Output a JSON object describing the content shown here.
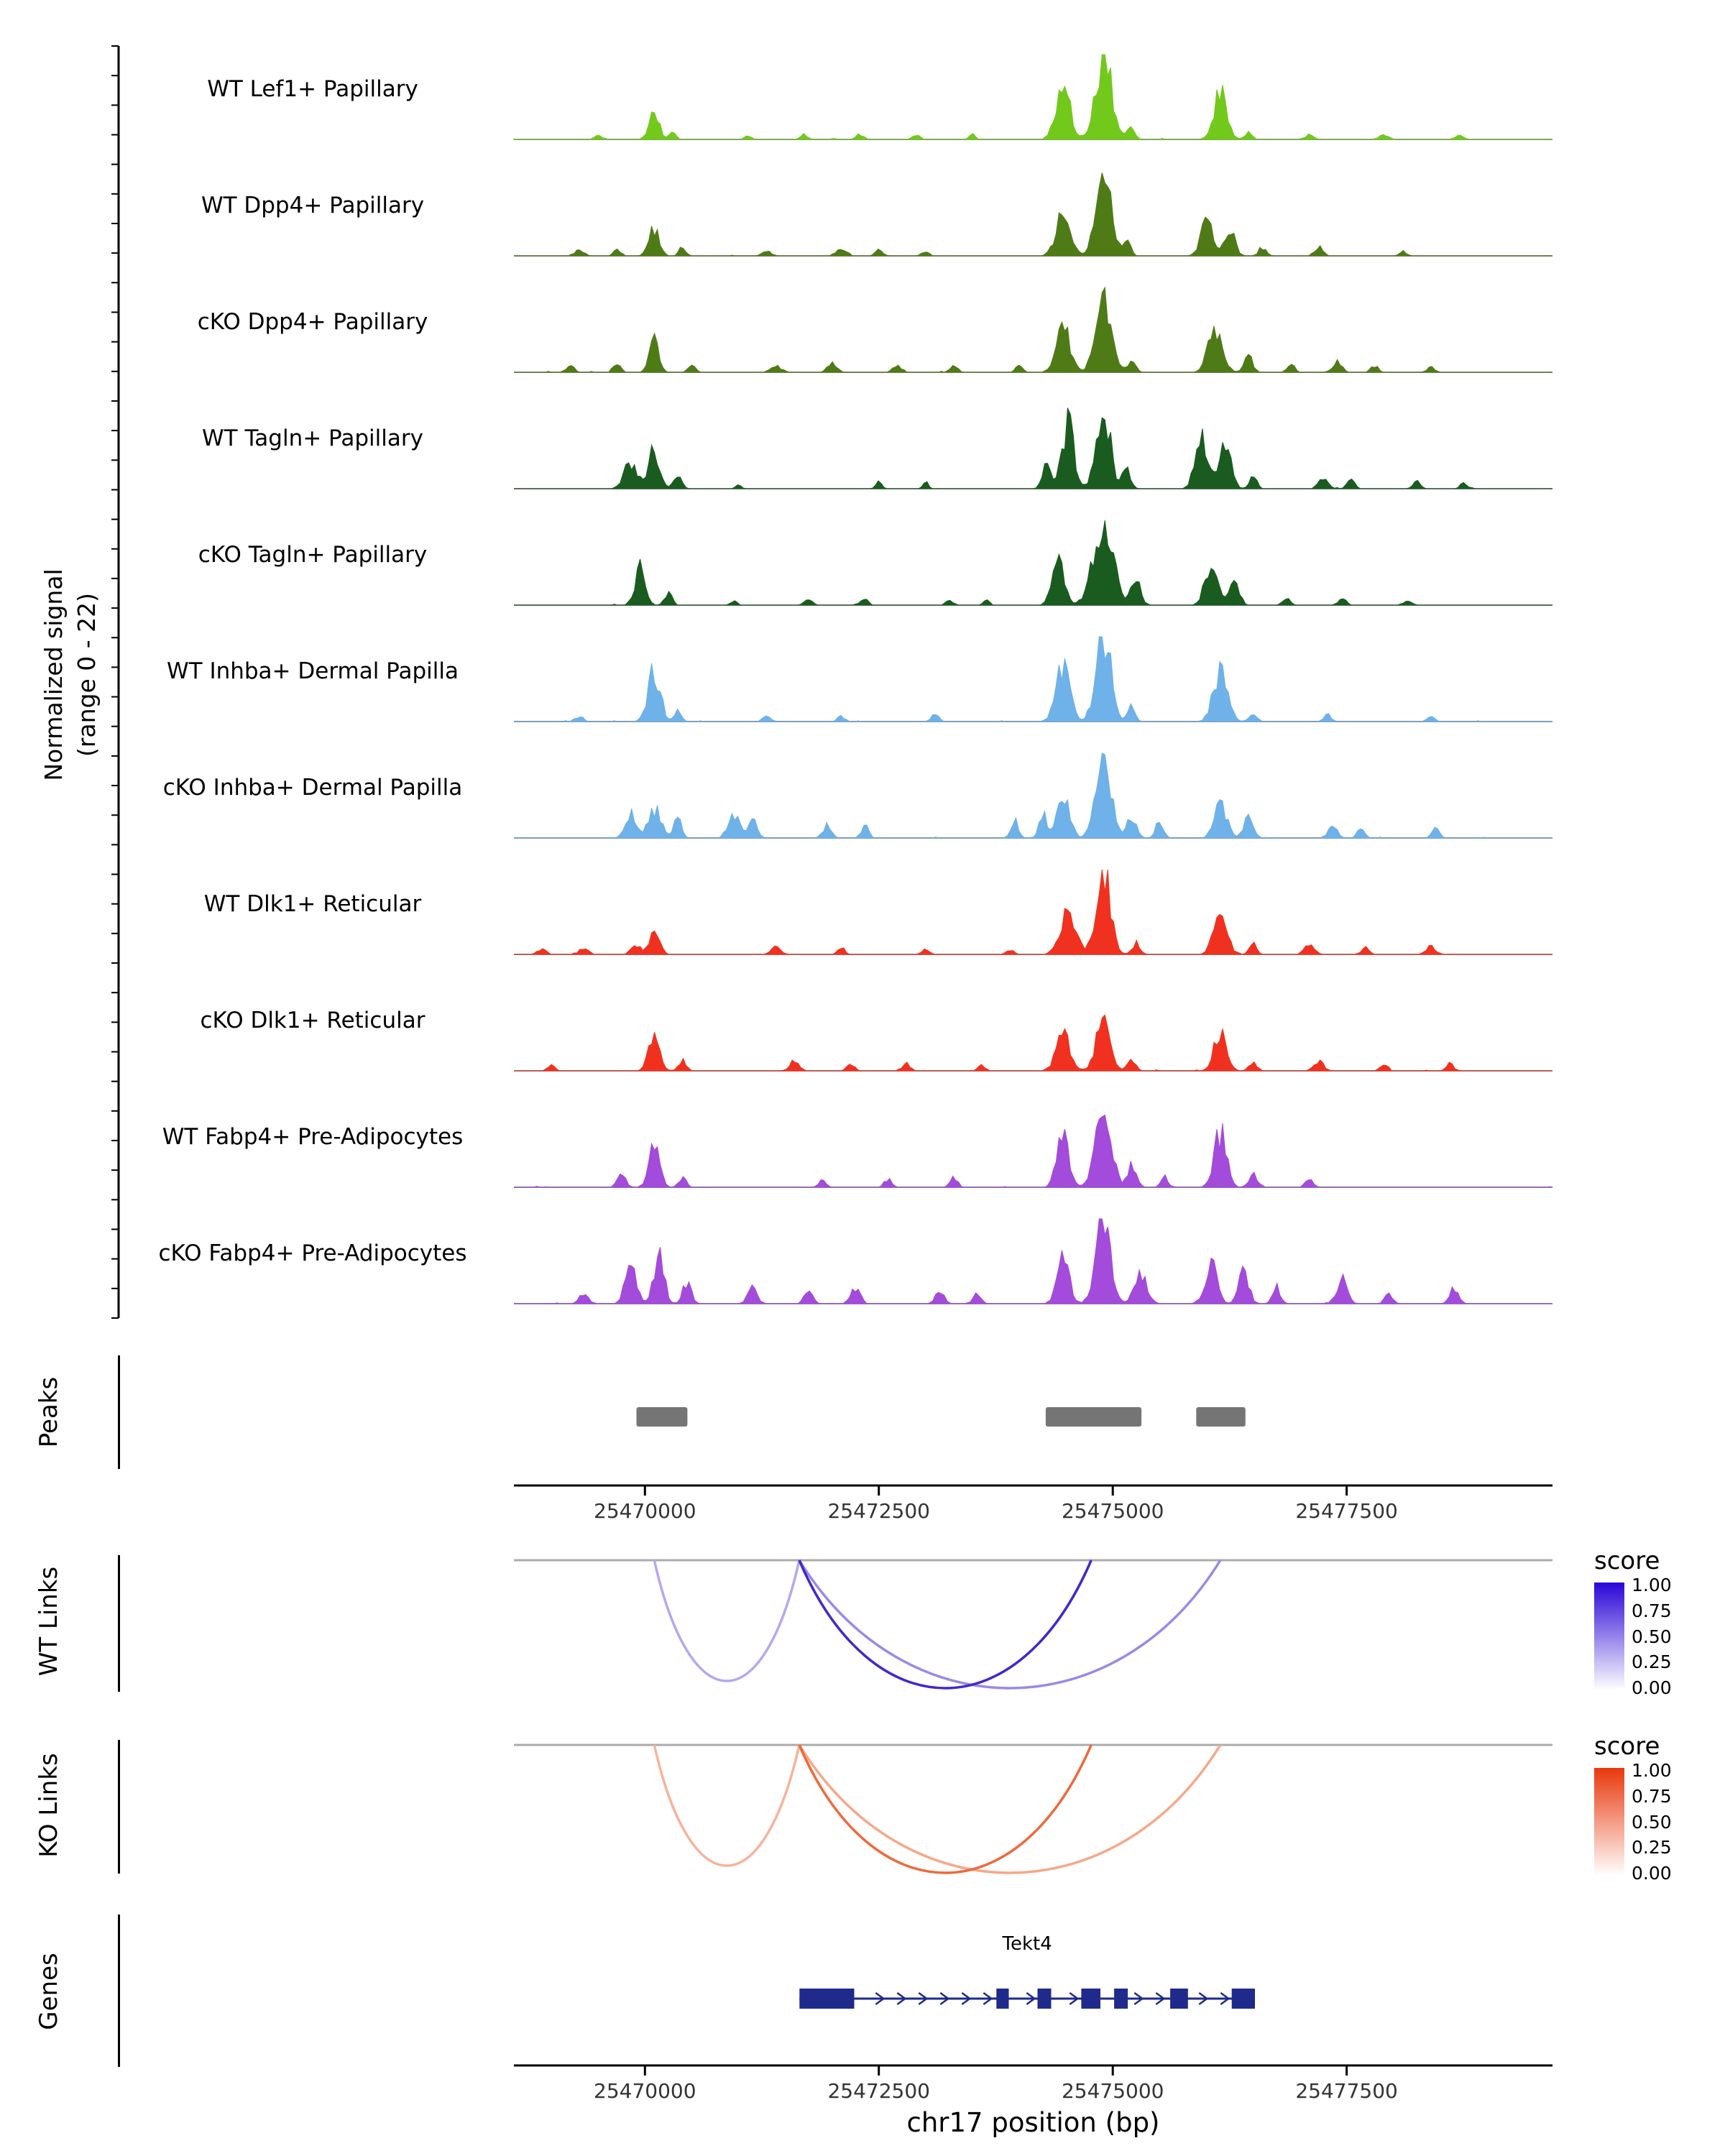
{
  "labels": {
    "signal_axis_line1": "Normalized signal",
    "signal_axis_line2": "(range 0 - 22)",
    "peaks": "Peaks",
    "wt_links": "WT Links",
    "ko_links": "KO Links",
    "genes": "Genes",
    "x_axis_title": "chr17 position (bp)"
  },
  "chart_data": {
    "type": "area",
    "subtype": "genome-coverage-tracks",
    "genome": {
      "chromosome": "chr17",
      "x_label": "chr17 position (bp)",
      "x_start": 25468600,
      "x_end": 25479700,
      "x_ticks": [
        25470000,
        25472500,
        25475000,
        25477500
      ]
    },
    "signal_range": "0 - 22",
    "colors": {
      "baseline": "#8C8C8C",
      "axis": "#000000",
      "links_topline": "#ABABAB",
      "peaks_box": "#757575"
    },
    "tracks": [
      {
        "label": "WT Lef1+ Papillary",
        "color": "#72C91C",
        "peaks": [
          [
            25469500,
            40,
            0.05
          ],
          [
            25470100,
            55,
            0.3
          ],
          [
            25470300,
            35,
            0.1
          ],
          [
            25471100,
            35,
            0.05
          ],
          [
            25471700,
            40,
            0.06
          ],
          [
            25472300,
            45,
            0.06
          ],
          [
            25472900,
            40,
            0.05
          ],
          [
            25473500,
            35,
            0.06
          ],
          [
            25474470,
            75,
            0.62
          ],
          [
            25474900,
            85,
            1.0
          ],
          [
            25475200,
            40,
            0.14
          ],
          [
            25476150,
            70,
            0.55
          ],
          [
            25476450,
            40,
            0.08
          ],
          [
            25477100,
            45,
            0.05
          ],
          [
            25477900,
            50,
            0.06
          ],
          [
            25478700,
            45,
            0.05
          ]
        ]
      },
      {
        "label": "WT Dpp4+ Papillary",
        "color": "#4F7B17",
        "peaks": [
          [
            25469300,
            50,
            0.07
          ],
          [
            25469700,
            40,
            0.08
          ],
          [
            25470100,
            55,
            0.33
          ],
          [
            25470400,
            35,
            0.1
          ],
          [
            25471300,
            45,
            0.07
          ],
          [
            25472100,
            55,
            0.09
          ],
          [
            25472500,
            40,
            0.07
          ],
          [
            25473000,
            40,
            0.05
          ],
          [
            25474470,
            75,
            0.48
          ],
          [
            25474900,
            80,
            0.97
          ],
          [
            25475150,
            40,
            0.18
          ],
          [
            25476000,
            60,
            0.42
          ],
          [
            25476250,
            55,
            0.3
          ],
          [
            25476600,
            40,
            0.1
          ],
          [
            25477200,
            45,
            0.1
          ],
          [
            25478100,
            40,
            0.05
          ]
        ]
      },
      {
        "label": "cKO Dpp4+ Papillary",
        "color": "#4F7B17",
        "peaks": [
          [
            25469200,
            45,
            0.08
          ],
          [
            25469700,
            40,
            0.1
          ],
          [
            25470100,
            50,
            0.36
          ],
          [
            25470500,
            40,
            0.08
          ],
          [
            25471400,
            55,
            0.08
          ],
          [
            25472000,
            50,
            0.1
          ],
          [
            25472700,
            45,
            0.08
          ],
          [
            25473300,
            40,
            0.08
          ],
          [
            25474000,
            40,
            0.07
          ],
          [
            25474470,
            75,
            0.52
          ],
          [
            25474900,
            80,
            0.9
          ],
          [
            25475200,
            45,
            0.14
          ],
          [
            25476100,
            75,
            0.52
          ],
          [
            25476450,
            45,
            0.18
          ],
          [
            25476900,
            40,
            0.1
          ],
          [
            25477400,
            50,
            0.12
          ],
          [
            25477800,
            40,
            0.08
          ],
          [
            25478400,
            40,
            0.06
          ]
        ]
      },
      {
        "label": "WT Tagln+ Papillary",
        "color": "#1A5C1F",
        "peaks": [
          [
            25469850,
            70,
            0.3
          ],
          [
            25470100,
            55,
            0.45
          ],
          [
            25470350,
            40,
            0.18
          ],
          [
            25471000,
            30,
            0.05
          ],
          [
            25472500,
            30,
            0.08
          ],
          [
            25473000,
            30,
            0.08
          ],
          [
            25474300,
            45,
            0.32
          ],
          [
            25474520,
            65,
            0.75
          ],
          [
            25474900,
            75,
            0.88
          ],
          [
            25475150,
            40,
            0.26
          ],
          [
            25475950,
            65,
            0.65
          ],
          [
            25476200,
            60,
            0.58
          ],
          [
            25476500,
            40,
            0.14
          ],
          [
            25477250,
            50,
            0.14
          ],
          [
            25477550,
            40,
            0.12
          ],
          [
            25478250,
            40,
            0.1
          ],
          [
            25478750,
            35,
            0.08
          ]
        ]
      },
      {
        "label": "cKO Tagln+ Papillary",
        "color": "#1A5C1F",
        "peaks": [
          [
            25469950,
            55,
            0.45
          ],
          [
            25470250,
            40,
            0.14
          ],
          [
            25470950,
            30,
            0.06
          ],
          [
            25471750,
            40,
            0.08
          ],
          [
            25472350,
            40,
            0.08
          ],
          [
            25473250,
            40,
            0.06
          ],
          [
            25473650,
            30,
            0.08
          ],
          [
            25474420,
            65,
            0.52
          ],
          [
            25474900,
            105,
            1.0
          ],
          [
            25475250,
            50,
            0.28
          ],
          [
            25476050,
            65,
            0.48
          ],
          [
            25476300,
            50,
            0.3
          ],
          [
            25476850,
            40,
            0.08
          ],
          [
            25477450,
            40,
            0.08
          ],
          [
            25478150,
            40,
            0.06
          ]
        ]
      },
      {
        "label": "WT Inhba+ Dermal Papilla",
        "color": "#6FB1E9",
        "peaks": [
          [
            25469300,
            45,
            0.06
          ],
          [
            25470100,
            65,
            0.58
          ],
          [
            25470350,
            40,
            0.12
          ],
          [
            25471300,
            45,
            0.06
          ],
          [
            25472100,
            40,
            0.06
          ],
          [
            25473100,
            40,
            0.08
          ],
          [
            25474470,
            75,
            0.62
          ],
          [
            25474900,
            80,
            1.0
          ],
          [
            25475200,
            40,
            0.16
          ],
          [
            25476150,
            75,
            0.58
          ],
          [
            25476500,
            40,
            0.1
          ],
          [
            25477300,
            40,
            0.08
          ],
          [
            25478400,
            40,
            0.06
          ]
        ]
      },
      {
        "label": "cKO Inhba+ Dermal Papilla",
        "color": "#6FB1E9",
        "peaks": [
          [
            25469850,
            55,
            0.3
          ],
          [
            25470100,
            70,
            0.34
          ],
          [
            25470350,
            40,
            0.26
          ],
          [
            25470950,
            60,
            0.3
          ],
          [
            25471150,
            45,
            0.26
          ],
          [
            25471950,
            45,
            0.16
          ],
          [
            25472350,
            40,
            0.14
          ],
          [
            25473950,
            40,
            0.2
          ],
          [
            25474250,
            40,
            0.3
          ],
          [
            25474470,
            65,
            0.56
          ],
          [
            25474900,
            80,
            0.94
          ],
          [
            25475200,
            50,
            0.24
          ],
          [
            25475500,
            40,
            0.2
          ],
          [
            25476150,
            65,
            0.42
          ],
          [
            25476450,
            50,
            0.22
          ],
          [
            25477350,
            50,
            0.14
          ],
          [
            25477650,
            40,
            0.1
          ],
          [
            25478450,
            40,
            0.1
          ]
        ]
      },
      {
        "label": "WT Dlk1+ Reticular",
        "color": "#F1311F",
        "peaks": [
          [
            25468900,
            45,
            0.06
          ],
          [
            25469350,
            45,
            0.08
          ],
          [
            25469900,
            45,
            0.12
          ],
          [
            25470100,
            55,
            0.3
          ],
          [
            25471400,
            50,
            0.1
          ],
          [
            25472100,
            40,
            0.08
          ],
          [
            25473000,
            40,
            0.06
          ],
          [
            25473900,
            40,
            0.06
          ],
          [
            25474520,
            85,
            0.46
          ],
          [
            25474900,
            75,
            1.0
          ],
          [
            25475250,
            40,
            0.14
          ],
          [
            25476150,
            75,
            0.4
          ],
          [
            25476500,
            40,
            0.12
          ],
          [
            25477100,
            50,
            0.12
          ],
          [
            25477700,
            40,
            0.08
          ],
          [
            25478400,
            50,
            0.1
          ]
        ]
      },
      {
        "label": "cKO Dlk1+ Reticular",
        "color": "#F1311F",
        "peaks": [
          [
            25469000,
            40,
            0.06
          ],
          [
            25470100,
            55,
            0.46
          ],
          [
            25470400,
            40,
            0.12
          ],
          [
            25471600,
            50,
            0.12
          ],
          [
            25472200,
            40,
            0.08
          ],
          [
            25472800,
            40,
            0.08
          ],
          [
            25473600,
            40,
            0.06
          ],
          [
            25474470,
            75,
            0.42
          ],
          [
            25474900,
            75,
            0.58
          ],
          [
            25475200,
            40,
            0.14
          ],
          [
            25476150,
            65,
            0.46
          ],
          [
            25476500,
            40,
            0.1
          ],
          [
            25477200,
            50,
            0.12
          ],
          [
            25477900,
            40,
            0.08
          ],
          [
            25478600,
            40,
            0.08
          ]
        ]
      },
      {
        "label": "WT Fabp4+ Pre-Adipocytes",
        "color": "#A34BDB",
        "peaks": [
          [
            25469750,
            45,
            0.14
          ],
          [
            25470100,
            55,
            0.5
          ],
          [
            25470400,
            40,
            0.12
          ],
          [
            25471900,
            40,
            0.08
          ],
          [
            25472600,
            40,
            0.1
          ],
          [
            25473300,
            40,
            0.12
          ],
          [
            25474470,
            65,
            0.6
          ],
          [
            25474900,
            80,
            0.94
          ],
          [
            25475200,
            50,
            0.24
          ],
          [
            25475550,
            40,
            0.12
          ],
          [
            25476150,
            65,
            0.64
          ],
          [
            25476500,
            50,
            0.14
          ],
          [
            25477100,
            40,
            0.1
          ]
        ]
      },
      {
        "label": "cKO Fabp4+ Pre-Adipocytes",
        "color": "#A34BDB",
        "peaks": [
          [
            25469350,
            45,
            0.14
          ],
          [
            25469850,
            60,
            0.44
          ],
          [
            25470150,
            55,
            0.58
          ],
          [
            25470450,
            45,
            0.26
          ],
          [
            25471150,
            50,
            0.18
          ],
          [
            25471750,
            45,
            0.15
          ],
          [
            25472250,
            50,
            0.18
          ],
          [
            25473150,
            45,
            0.15
          ],
          [
            25473550,
            40,
            0.12
          ],
          [
            25474470,
            65,
            0.52
          ],
          [
            25474900,
            80,
            0.97
          ],
          [
            25475300,
            65,
            0.36
          ],
          [
            25476050,
            65,
            0.46
          ],
          [
            25476400,
            55,
            0.36
          ],
          [
            25476750,
            40,
            0.2
          ],
          [
            25477450,
            55,
            0.3
          ],
          [
            25477950,
            40,
            0.12
          ],
          [
            25478650,
            45,
            0.18
          ]
        ]
      }
    ],
    "peaks_regions": [
      [
        25469910,
        25470455
      ],
      [
        25474284,
        25475307
      ],
      [
        25475892,
        25476418
      ]
    ],
    "links": [
      {
        "name": "WT Links",
        "legend_title": "score",
        "legend_ticks": [
          "1.00",
          "0.75",
          "0.50",
          "0.25",
          "0.00"
        ],
        "gradient_top": "#2A06D6",
        "gradient_bottom": "#FFFFFF",
        "arcs": [
          {
            "start": 25470100,
            "end": 25471650,
            "score": 0.4,
            "color": "#B7A6EF"
          },
          {
            "start": 25471650,
            "end": 25476150,
            "score": 0.55,
            "color": "#9C88E8"
          },
          {
            "start": 25471650,
            "end": 25474770,
            "score": 0.85,
            "color": "#4327CE"
          }
        ]
      },
      {
        "name": "KO Links",
        "legend_title": "score",
        "legend_ticks": [
          "1.00",
          "0.75",
          "0.50",
          "0.25",
          "0.00"
        ],
        "gradient_top": "#E8380C",
        "gradient_bottom": "#FFFFFF",
        "arcs": [
          {
            "start": 25470100,
            "end": 25471650,
            "score": 0.35,
            "color": "#F8B29A"
          },
          {
            "start": 25471650,
            "end": 25476150,
            "score": 0.35,
            "color": "#F6A788"
          },
          {
            "start": 25471650,
            "end": 25474770,
            "score": 0.6,
            "color": "#EE6A3B"
          }
        ]
      }
    ],
    "gene": {
      "name": "Tekt4",
      "color": "#1F2A8C",
      "strand": "+",
      "start": 25471652,
      "end": 25476520,
      "exons": [
        [
          25471652,
          25472237
        ],
        [
          25473757,
          25473889
        ],
        [
          25474196,
          25474342
        ],
        [
          25474664,
          25474868
        ],
        [
          25475015,
          25475161
        ],
        [
          25475614,
          25475804
        ],
        [
          25476272,
          25476520
        ]
      ]
    }
  }
}
